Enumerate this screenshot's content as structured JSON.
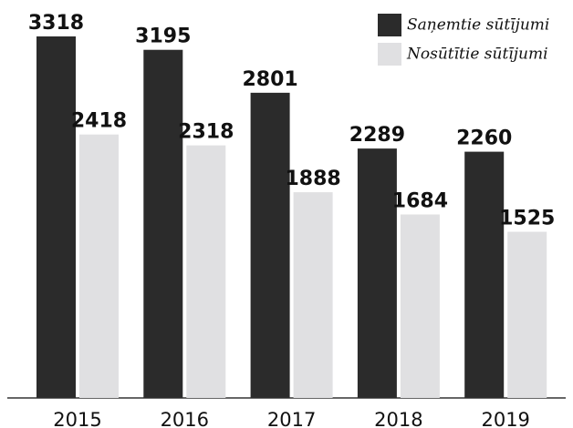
{
  "chart_data": {
    "type": "bar",
    "categories": [
      "2015",
      "2016",
      "2017",
      "2018",
      "2019"
    ],
    "series": [
      {
        "name": "Saņemtie sūtījumi",
        "color": "#2b2b2b",
        "values": [
          3318,
          3195,
          2801,
          2289,
          2260
        ]
      },
      {
        "name": "Nosūtītie sūtījumi",
        "color": "#e0e0e2",
        "values": [
          2418,
          2318,
          1888,
          1684,
          1525
        ]
      }
    ]
  }
}
